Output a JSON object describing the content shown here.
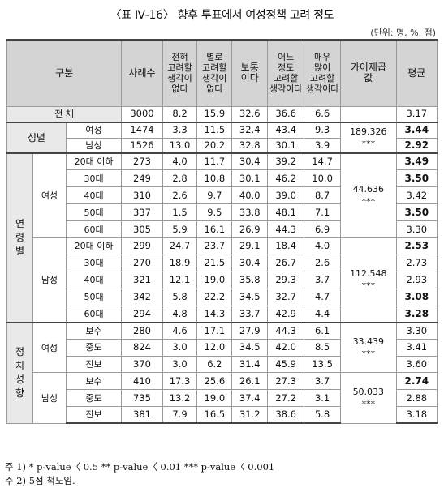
{
  "title": "〈표 Ⅳ-16〉 향후 투표에서 여성정책 고려 정도",
  "unit": "(단위: 명, %, 점)",
  "header": {
    "category": "구분",
    "n": "사례수",
    "c1": "전혀\n고려할\n생각이\n없다",
    "c2": "별로\n고려할\n생각이\n없다",
    "c3": "보통\n이다",
    "c4": "어느\n정도\n고려할\n생각이다",
    "c5": "매우\n많이\n고려할\n생각이다",
    "chi": "카이제곱\n값",
    "avg": "평균"
  },
  "total": {
    "label": "전  체",
    "n": "3000",
    "v": [
      "8.2",
      "15.9",
      "32.6",
      "36.6",
      "6.6"
    ],
    "avg": "3.17"
  },
  "gender": {
    "label": "성별",
    "chi": "189.326\n***",
    "rows": [
      {
        "label": "여성",
        "n": "1474",
        "v": [
          "3.3",
          "11.5",
          "32.4",
          "43.4",
          "9.3"
        ],
        "avg": "3.44",
        "bold": true
      },
      {
        "label": "남성",
        "n": "1526",
        "v": [
          "13.0",
          "20.2",
          "32.8",
          "30.1",
          "3.9"
        ],
        "avg": "2.92",
        "bold": true
      }
    ]
  },
  "age": {
    "label": "연\n령\n별",
    "female": {
      "label": "여성",
      "chi": "44.636\n***",
      "rows": [
        {
          "label": "20대 이하",
          "n": "273",
          "v": [
            "4.0",
            "11.7",
            "30.4",
            "39.2",
            "14.7"
          ],
          "avg": "3.49",
          "bold": true
        },
        {
          "label": "30대",
          "n": "249",
          "v": [
            "2.8",
            "10.8",
            "30.1",
            "46.2",
            "10.0"
          ],
          "avg": "3.50",
          "bold": true
        },
        {
          "label": "40대",
          "n": "310",
          "v": [
            "2.6",
            "9.7",
            "40.0",
            "39.0",
            "8.7"
          ],
          "avg": "3.42",
          "bold": false
        },
        {
          "label": "50대",
          "n": "337",
          "v": [
            "1.5",
            "9.5",
            "33.8",
            "48.1",
            "7.1"
          ],
          "avg": "3.50",
          "bold": true
        },
        {
          "label": "60대",
          "n": "305",
          "v": [
            "5.9",
            "16.1",
            "26.9",
            "44.3",
            "6.9"
          ],
          "avg": "3.30",
          "bold": false
        }
      ]
    },
    "male": {
      "label": "남성",
      "chi": "112.548\n***",
      "rows": [
        {
          "label": "20대 이하",
          "n": "299",
          "v": [
            "24.7",
            "23.7",
            "29.1",
            "18.4",
            "4.0"
          ],
          "avg": "2.53",
          "bold": true
        },
        {
          "label": "30대",
          "n": "270",
          "v": [
            "18.9",
            "21.5",
            "30.4",
            "26.7",
            "2.6"
          ],
          "avg": "2.73",
          "bold": false
        },
        {
          "label": "40대",
          "n": "321",
          "v": [
            "12.1",
            "19.0",
            "35.8",
            "29.3",
            "3.7"
          ],
          "avg": "2.93",
          "bold": false
        },
        {
          "label": "50대",
          "n": "342",
          "v": [
            "5.8",
            "22.2",
            "34.5",
            "32.7",
            "4.7"
          ],
          "avg": "3.08",
          "bold": true
        },
        {
          "label": "60대",
          "n": "294",
          "v": [
            "4.8",
            "14.3",
            "33.7",
            "42.9",
            "4.4"
          ],
          "avg": "3.28",
          "bold": true
        }
      ]
    }
  },
  "politics": {
    "label": "정\n치\n성\n향",
    "female": {
      "label": "여성",
      "chi": "33.439\n***",
      "rows": [
        {
          "label": "보수",
          "n": "280",
          "v": [
            "4.6",
            "17.1",
            "27.9",
            "44.3",
            "6.1"
          ],
          "avg": "3.30",
          "bold": false
        },
        {
          "label": "중도",
          "n": "824",
          "v": [
            "3.0",
            "12.0",
            "34.5",
            "42.0",
            "8.5"
          ],
          "avg": "3.41",
          "bold": false
        },
        {
          "label": "진보",
          "n": "370",
          "v": [
            "3.0",
            "6.2",
            "31.4",
            "45.9",
            "13.5"
          ],
          "avg": "3.60",
          "bold": false
        }
      ]
    },
    "male": {
      "label": "남성",
      "chi": "50.033\n***",
      "rows": [
        {
          "label": "보수",
          "n": "410",
          "v": [
            "17.3",
            "25.6",
            "26.1",
            "27.3",
            "3.7"
          ],
          "avg": "2.74",
          "bold": true
        },
        {
          "label": "중도",
          "n": "735",
          "v": [
            "13.2",
            "19.0",
            "37.4",
            "27.2",
            "3.1"
          ],
          "avg": "2.88",
          "bold": false
        },
        {
          "label": "진보",
          "n": "381",
          "v": [
            "7.9",
            "16.5",
            "31.2",
            "38.6",
            "5.8"
          ],
          "avg": "3.18",
          "bold": false
        }
      ]
    }
  },
  "notes": [
    "주 1) * p-value〈 0.5 ** p-value〈 0.01 *** p-value〈 0.001",
    "주 2) 5점 척도임."
  ]
}
